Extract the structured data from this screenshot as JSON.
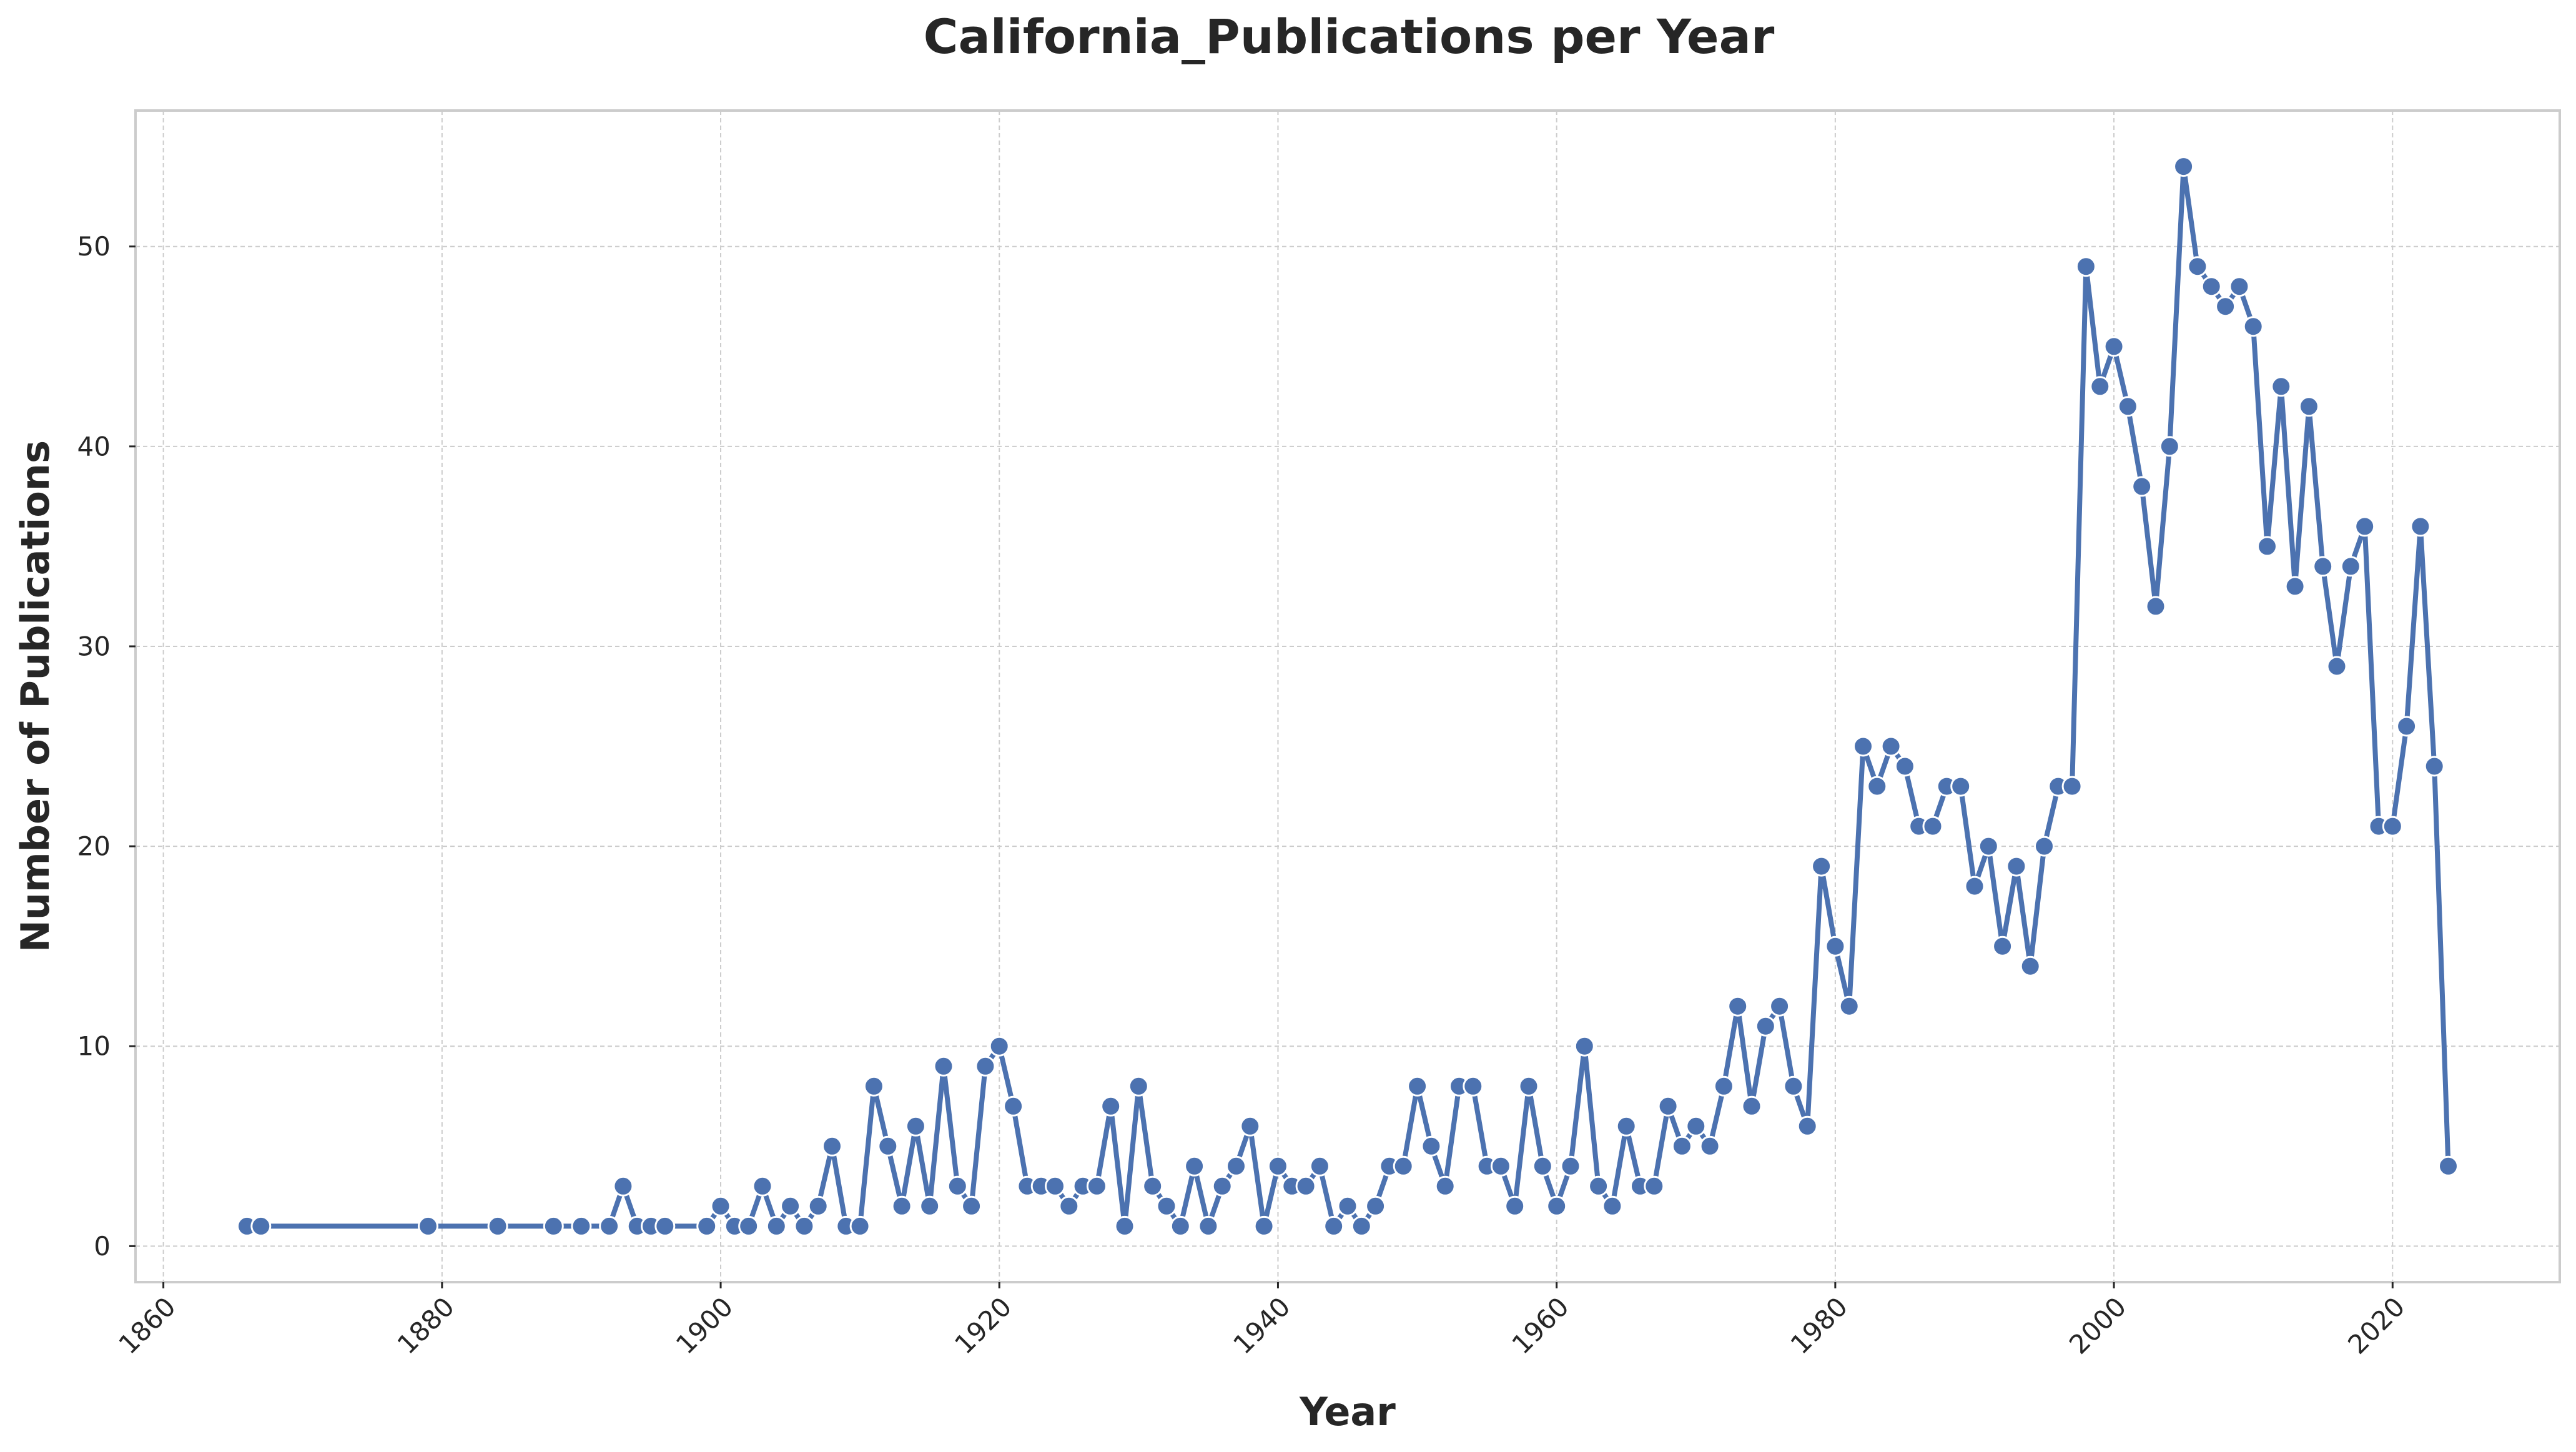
{
  "chart_data": {
    "type": "line",
    "title": "California_Publications per Year",
    "xlabel": "Year",
    "ylabel": "Number of Publications",
    "xlim": [
      1858,
      2032
    ],
    "ylim": [
      -1.8,
      56.8
    ],
    "xticks": [
      1860,
      1880,
      1900,
      1920,
      1940,
      1960,
      1980,
      2000,
      2020
    ],
    "yticks": [
      0,
      10,
      20,
      30,
      40,
      50
    ],
    "grid": true,
    "line_color": "#4c72b0",
    "series": [
      {
        "name": "Publications",
        "x": [
          1866,
          1867,
          1879,
          1884,
          1888,
          1890,
          1892,
          1893,
          1894,
          1895,
          1896,
          1899,
          1900,
          1901,
          1902,
          1903,
          1904,
          1905,
          1906,
          1907,
          1908,
          1909,
          1910,
          1911,
          1912,
          1913,
          1914,
          1915,
          1916,
          1917,
          1918,
          1919,
          1920,
          1921,
          1922,
          1923,
          1924,
          1925,
          1926,
          1927,
          1928,
          1929,
          1930,
          1931,
          1932,
          1933,
          1934,
          1935,
          1936,
          1937,
          1938,
          1939,
          1940,
          1941,
          1942,
          1943,
          1944,
          1945,
          1946,
          1947,
          1948,
          1949,
          1950,
          1951,
          1952,
          1953,
          1954,
          1955,
          1956,
          1957,
          1958,
          1959,
          1960,
          1961,
          1962,
          1963,
          1964,
          1965,
          1966,
          1967,
          1968,
          1969,
          1970,
          1971,
          1972,
          1973,
          1974,
          1975,
          1976,
          1977,
          1978,
          1979,
          1980,
          1981,
          1982,
          1983,
          1984,
          1985,
          1986,
          1987,
          1988,
          1989,
          1990,
          1991,
          1992,
          1993,
          1994,
          1995,
          1996,
          1997,
          1998,
          1999,
          2000,
          2001,
          2002,
          2003,
          2004,
          2005,
          2006,
          2007,
          2008,
          2009,
          2010,
          2011,
          2012,
          2013,
          2014,
          2015,
          2016,
          2017,
          2018,
          2019,
          2020,
          2021,
          2022,
          2023,
          2024
        ],
        "values": [
          1,
          1,
          1,
          1,
          1,
          1,
          1,
          3,
          1,
          1,
          1,
          1,
          2,
          1,
          1,
          3,
          1,
          2,
          1,
          2,
          5,
          1,
          1,
          8,
          5,
          2,
          6,
          2,
          9,
          3,
          2,
          9,
          10,
          7,
          3,
          3,
          3,
          2,
          3,
          3,
          7,
          1,
          8,
          3,
          2,
          1,
          4,
          1,
          3,
          4,
          6,
          1,
          4,
          3,
          3,
          4,
          1,
          2,
          1,
          2,
          4,
          4,
          8,
          5,
          3,
          8,
          8,
          4,
          4,
          2,
          8,
          4,
          2,
          4,
          10,
          3,
          2,
          6,
          3,
          3,
          7,
          5,
          6,
          5,
          8,
          12,
          7,
          11,
          12,
          8,
          6,
          19,
          15,
          12,
          25,
          23,
          25,
          24,
          21,
          21,
          23,
          23,
          18,
          20,
          15,
          19,
          14,
          20,
          23,
          23,
          49,
          43,
          45,
          42,
          38,
          32,
          40,
          54,
          49,
          48,
          47,
          48,
          46,
          35,
          43,
          33,
          42,
          34,
          29,
          34,
          36,
          21,
          21,
          26,
          36,
          24,
          4
        ]
      }
    ]
  }
}
